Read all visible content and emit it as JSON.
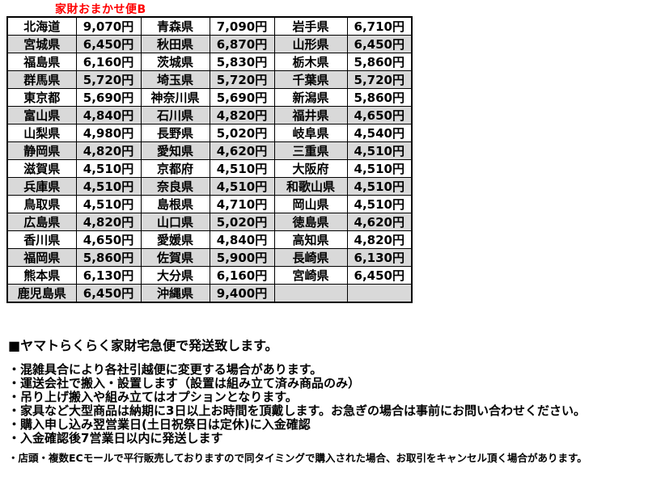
{
  "title": "家財おまかせ便B",
  "table": {
    "rows": [
      [
        "北海道",
        "9,070円",
        "青森県",
        "7,090円",
        "岩手県",
        "6,710円"
      ],
      [
        "宮城県",
        "6,450円",
        "秋田県",
        "6,870円",
        "山形県",
        "6,450円"
      ],
      [
        "福島県",
        "6,160円",
        "茨城県",
        "5,830円",
        "栃木県",
        "5,860円"
      ],
      [
        "群馬県",
        "5,720円",
        "埼玉県",
        "5,720円",
        "千葉県",
        "5,720円"
      ],
      [
        "東京都",
        "5,690円",
        "神奈川県",
        "5,690円",
        "新潟県",
        "5,860円"
      ],
      [
        "富山県",
        "4,840円",
        "石川県",
        "4,820円",
        "福井県",
        "4,650円"
      ],
      [
        "山梨県",
        "4,980円",
        "長野県",
        "5,020円",
        "岐阜県",
        "4,540円"
      ],
      [
        "静岡県",
        "4,820円",
        "愛知県",
        "4,620円",
        "三重県",
        "4,510円"
      ],
      [
        "滋賀県",
        "4,510円",
        "京都府",
        "4,510円",
        "大阪府",
        "4,510円"
      ],
      [
        "兵庫県",
        "4,510円",
        "奈良県",
        "4,510円",
        "和歌山県",
        "4,510円"
      ],
      [
        "鳥取県",
        "4,510円",
        "島根県",
        "4,710円",
        "岡山県",
        "4,510円"
      ],
      [
        "広島県",
        "4,820円",
        "山口県",
        "5,020円",
        "徳島県",
        "4,620円"
      ],
      [
        "香川県",
        "4,650円",
        "愛媛県",
        "4,840円",
        "高知県",
        "4,820円"
      ],
      [
        "福岡県",
        "5,860円",
        "佐賀県",
        "5,900円",
        "長崎県",
        "6,130円"
      ],
      [
        "熊本県",
        "6,130円",
        "大分県",
        "6,160円",
        "宮崎県",
        "6,450円"
      ],
      [
        "鹿児島県",
        "6,450円",
        "沖縄県",
        "9,400円",
        "",
        ""
      ]
    ]
  },
  "notes": {
    "heading": "■ヤマトらくらく家財宅急便で発送致します。",
    "bullets": [
      "・混雑具合により各社引越便に変更する場合があります。",
      "・運送会社で搬入・設置します（設置は組み立て済み商品のみ）",
      "・吊り上げ搬入や組み立てはオプションとなります。",
      "・家具など大型商品は納期に3日以上お時間を頂戴します。お急ぎの場合は事前にお問い合わせください。",
      "・購入申し込み翌営業日(土日祝祭日は定休)に入金確認",
      "・入金確認後7営業日以内に発送します"
    ],
    "small_note": "・店頭・複数ECモールで平行販売しておりますので同タイミングで購入された場合、お取引をキャンセル頂く場合があります。"
  },
  "colors": {
    "title_red": "#FF0000",
    "row_stripe": "#D9D9D9",
    "border": "#000000",
    "text": "#000000"
  }
}
